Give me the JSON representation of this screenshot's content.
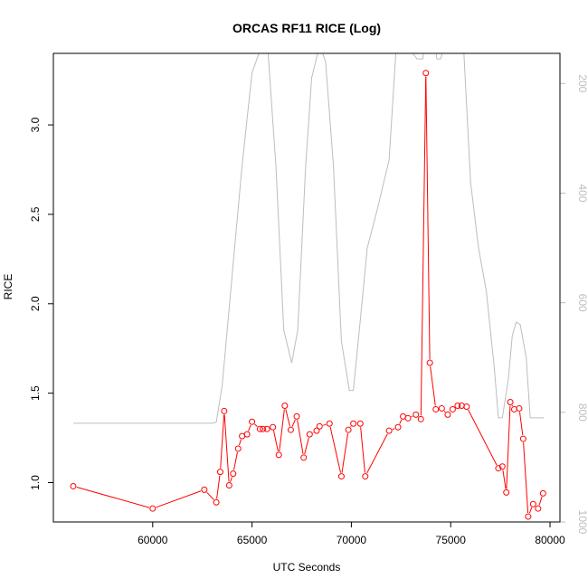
{
  "chart_data": {
    "type": "line",
    "title": "ORCAS RF11 RICE (Log)",
    "xlabel": "UTC Seconds",
    "ylabel": "RICE",
    "xlim": [
      55000,
      80500
    ],
    "ylim": [
      0.78,
      3.4
    ],
    "y2lim": [
      1000,
      145
    ],
    "y2_reversed": true,
    "x_ticks": [
      60000,
      65000,
      70000,
      75000,
      80000
    ],
    "x_tick_labels": [
      "60000",
      "65000",
      "70000",
      "75000",
      "80000"
    ],
    "y_ticks": [
      1.0,
      1.5,
      2.0,
      2.5,
      3.0
    ],
    "y_tick_labels": [
      "1.0",
      "1.5",
      "2.0",
      "2.5",
      "3.0"
    ],
    "y2_ticks": [
      200,
      400,
      600,
      800,
      1000
    ],
    "y2_tick_labels": [
      "200",
      "400",
      "600",
      "800",
      "1000"
    ],
    "series": [
      {
        "color": "#ff0000",
        "marker": "open-circle",
        "axis": "left",
        "x": [
          56000,
          60000,
          62600,
          63200,
          63400,
          63600,
          63850,
          64050,
          64300,
          64500,
          64750,
          65000,
          65400,
          65550,
          65750,
          66050,
          66350,
          66650,
          66950,
          67250,
          67600,
          67900,
          68250,
          68400,
          68900,
          69500,
          69850,
          70100,
          70450,
          70700,
          71900,
          72350,
          72600,
          72850,
          73250,
          73500,
          73750,
          73950,
          74250,
          74550,
          74850,
          75100,
          75350,
          75550,
          75800,
          77400,
          77600,
          77800,
          78000,
          78200,
          78450,
          78650,
          78900,
          79150,
          79400,
          79650
        ],
        "y": [
          0.98,
          0.855,
          0.96,
          0.89,
          1.06,
          1.4,
          0.985,
          1.05,
          1.19,
          1.26,
          1.27,
          1.34,
          1.3,
          1.3,
          1.3,
          1.31,
          1.155,
          1.43,
          1.295,
          1.37,
          1.14,
          1.27,
          1.29,
          1.315,
          1.33,
          1.035,
          1.295,
          1.33,
          1.33,
          1.035,
          1.29,
          1.31,
          1.37,
          1.36,
          1.38,
          1.355,
          3.29,
          1.67,
          1.41,
          1.415,
          1.38,
          1.41,
          1.43,
          1.43,
          1.425,
          1.08,
          1.09,
          0.945,
          1.45,
          1.41,
          1.415,
          1.245,
          0.81,
          0.88,
          0.855,
          0.94
        ]
      },
      {
        "color": "#bdbdbd",
        "marker": "none",
        "axis": "right",
        "x": [
          56000,
          60000,
          62000,
          63000,
          63200,
          63500,
          64000,
          64500,
          65000,
          65600,
          65800,
          66200,
          66600,
          67000,
          67300,
          67700,
          68000,
          68400,
          68700,
          69100,
          69500,
          69900,
          70100,
          70400,
          70800,
          71300,
          71900,
          72300,
          73200,
          73300,
          73600,
          73700,
          74200,
          74300,
          74500,
          74900,
          75100,
          75600,
          76000,
          76400,
          76800,
          77200,
          77400,
          77600,
          77900,
          78100,
          78300,
          78500,
          78800,
          79000,
          79200,
          79700
        ],
        "y": [
          820,
          820,
          820,
          820,
          818,
          750,
          550,
          350,
          180,
          120,
          140,
          350,
          650,
          710,
          650,
          350,
          190,
          130,
          160,
          350,
          670,
          760,
          760,
          650,
          500,
          430,
          340,
          110,
          150,
          155,
          155,
          120,
          120,
          155,
          155,
          100,
          130,
          100,
          380,
          500,
          580,
          720,
          810,
          810,
          740,
          660,
          635,
          640,
          700,
          810,
          810,
          810
        ]
      }
    ]
  }
}
